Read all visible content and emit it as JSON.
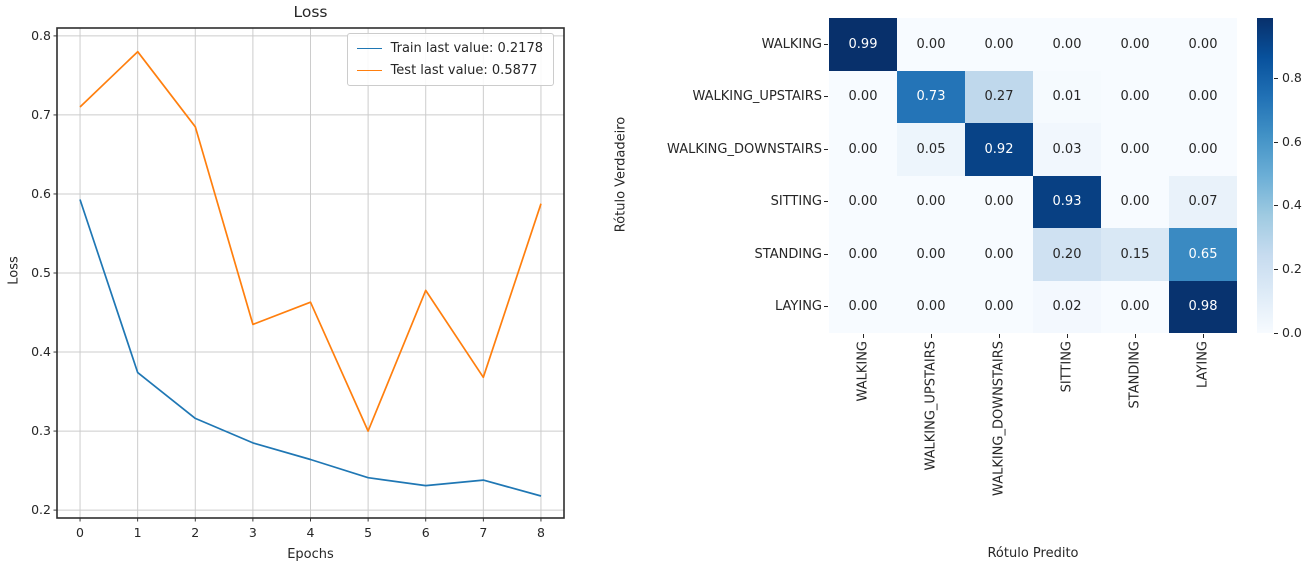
{
  "chart_data": [
    {
      "type": "line",
      "title": "Loss",
      "xlabel": "Epochs",
      "ylabel": "Loss",
      "x": [
        0,
        1,
        2,
        3,
        4,
        5,
        6,
        7,
        8
      ],
      "series": [
        {
          "name": "Train",
          "legend_label": "Train last value: 0.2178",
          "color": "#1f77b4",
          "values": [
            0.593,
            0.374,
            0.316,
            0.285,
            0.264,
            0.241,
            0.231,
            0.238,
            0.2178
          ]
        },
        {
          "name": "Test",
          "legend_label": "Test last value: 0.5877",
          "color": "#ff7f0e",
          "values": [
            0.71,
            0.78,
            0.685,
            0.435,
            0.463,
            0.3,
            0.478,
            0.368,
            0.5877
          ]
        }
      ],
      "xlim": [
        -0.4,
        8.4
      ],
      "ylim": [
        0.19,
        0.81
      ],
      "xtick_labels": [
        "0",
        "1",
        "2",
        "3",
        "4",
        "5",
        "6",
        "7",
        "8"
      ],
      "ytick_labels": [
        "0.2",
        "0.3",
        "0.4",
        "0.5",
        "0.6",
        "0.7",
        "0.8"
      ],
      "grid": true,
      "legend_position": "upper right"
    },
    {
      "type": "heatmap",
      "xlabel": "Rótulo Predito",
      "ylabel": "Rótulo Verdadeiro",
      "row_labels": [
        "WALKING",
        "WALKING_UPSTAIRS",
        "WALKING_DOWNSTAIRS",
        "SITTING",
        "STANDING",
        "LAYING"
      ],
      "col_labels": [
        "WALKING",
        "WALKING_UPSTAIRS",
        "WALKING_DOWNSTAIRS",
        "SITTING",
        "STANDING",
        "LAYING"
      ],
      "matrix": [
        [
          0.99,
          0.0,
          0.0,
          0.0,
          0.0,
          0.0
        ],
        [
          0.0,
          0.73,
          0.27,
          0.01,
          0.0,
          0.0
        ],
        [
          0.0,
          0.05,
          0.92,
          0.03,
          0.0,
          0.0
        ],
        [
          0.0,
          0.0,
          0.0,
          0.93,
          0.0,
          0.07
        ],
        [
          0.0,
          0.0,
          0.0,
          0.2,
          0.15,
          0.65
        ],
        [
          0.0,
          0.0,
          0.0,
          0.02,
          0.0,
          0.98
        ]
      ],
      "colormap": "Blues",
      "vmin": 0.0,
      "vmax": 0.99,
      "colorbar_tick_labels": [
        "0.0",
        "0.2",
        "0.4",
        "0.6",
        "0.8"
      ],
      "colorbar_position": "right",
      "grid": false
    }
  ]
}
